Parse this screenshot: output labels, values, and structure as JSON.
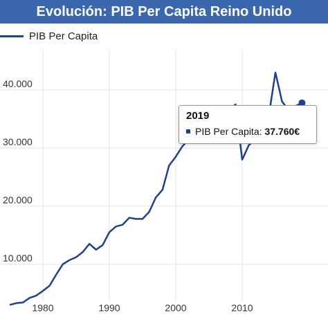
{
  "chart_data": {
    "type": "line",
    "title": "Evolución: PIB Per Capita Reino Unido",
    "xlabel": "",
    "ylabel": "",
    "xlim": [
      1975,
      2022
    ],
    "ylim": [
      0,
      43000
    ],
    "grid": true,
    "legend_position": "top-left",
    "x_ticks": [
      1980,
      1990,
      2000,
      2010
    ],
    "y_ticks": [
      10000,
      20000,
      30000,
      40000
    ],
    "y_tick_labels": [
      "10.000",
      "20.000",
      "30.000",
      "40.000"
    ],
    "x_tick_labels": [
      "1980",
      "1990",
      "2000",
      "2010"
    ],
    "line_color": "#1f3f8f",
    "series": [
      {
        "name": "PIB Per Capita",
        "x": [
          1975,
          1976,
          1977,
          1978,
          1979,
          1980,
          1981,
          1982,
          1983,
          1984,
          1985,
          1986,
          1987,
          1988,
          1989,
          1990,
          1991,
          1992,
          1993,
          1994,
          1995,
          1996,
          1997,
          1998,
          1999,
          2000,
          2001,
          2002,
          2003,
          2004,
          2005,
          2006,
          2007,
          2008,
          2009,
          2010,
          2011,
          2012,
          2013,
          2014,
          2015,
          2016,
          2017,
          2018,
          2019
        ],
        "y": [
          3000,
          3300,
          3400,
          4200,
          4600,
          5400,
          6300,
          8200,
          10000,
          10700,
          11200,
          12100,
          13500,
          12500,
          13300,
          15500,
          16500,
          16800,
          18000,
          17800,
          17800,
          19000,
          21500,
          22800,
          27000,
          28500,
          30300,
          31500,
          34000,
          35500,
          35000,
          35800,
          37000,
          36500,
          37500,
          28000,
          30500,
          31500,
          33500,
          35500,
          43000,
          38000,
          36500,
          37200,
          37760
        ]
      }
    ],
    "tooltip": {
      "year": "2019",
      "label": "PIB Per Capita:",
      "value": "37.760€"
    }
  }
}
